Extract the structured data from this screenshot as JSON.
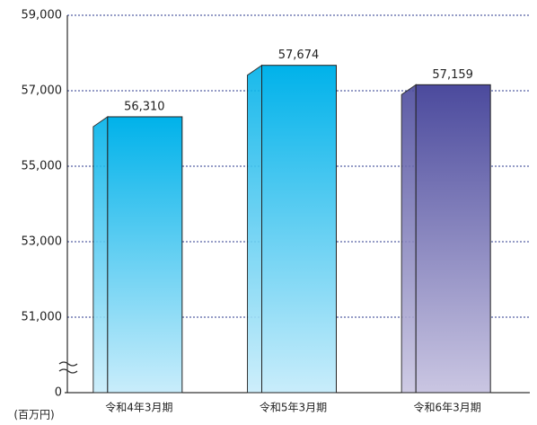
{
  "chart_data": {
    "type": "bar",
    "categories": [
      "令和4年3月期",
      "令和5年3月期",
      "令和6年3月期"
    ],
    "values": [
      56310,
      57674,
      57159
    ],
    "value_labels": [
      "56,310",
      "57,674",
      "57,159"
    ],
    "colors": [
      [
        "#00b2ea",
        "#c9edfb"
      ],
      [
        "#00b2ea",
        "#c9edfb"
      ],
      [
        "#4b4a9d",
        "#cac6e2"
      ]
    ],
    "ylim": [
      0,
      59000
    ],
    "axis_break": [
      0,
      49000
    ],
    "yticks": [
      0,
      {
        "value": 51000,
        "label": "51,000"
      },
      {
        "value": 53000,
        "label": "53,000"
      },
      {
        "value": 55000,
        "label": "55,000"
      },
      {
        "value": 57000,
        "label": "57,000"
      },
      {
        "value": 59000,
        "label": "59,000"
      }
    ],
    "unit": "(百万円)",
    "grid": true
  }
}
